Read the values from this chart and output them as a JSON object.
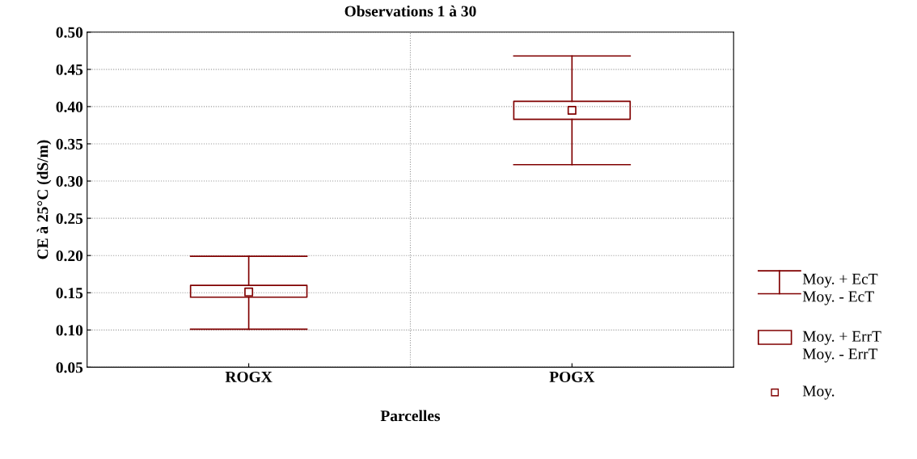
{
  "chart_data": {
    "type": "box",
    "title": "Observations 1 à 30",
    "xlabel": "Parcelles",
    "ylabel": "CE à 25°C (dS/m)",
    "categories": [
      "ROGX",
      "POGX"
    ],
    "boxes": [
      {
        "low": 0.101,
        "q1": 0.144,
        "q3": 0.16,
        "high": 0.199,
        "mean": 0.151
      },
      {
        "low": 0.322,
        "q1": 0.383,
        "q3": 0.407,
        "high": 0.468,
        "mean": 0.395
      }
    ],
    "color": "#800000",
    "ylim": [
      0.05,
      0.5
    ],
    "yticks": [
      {
        "value": 0.05,
        "label": "0.05"
      },
      {
        "value": 0.1,
        "label": "0.10"
      },
      {
        "value": 0.15,
        "label": "0.15"
      },
      {
        "value": 0.2,
        "label": "0.20"
      },
      {
        "value": 0.25,
        "label": "0.25"
      },
      {
        "value": 0.3,
        "label": "0.30"
      },
      {
        "value": 0.35,
        "label": "0.35"
      },
      {
        "value": 0.4,
        "label": "0.40"
      },
      {
        "value": 0.45,
        "label": "0.45"
      },
      {
        "value": 0.5,
        "label": "0.50"
      }
    ],
    "grid": true,
    "marker": "square",
    "annotations": [
      "Moy. + EcT\nMoy. - EcT",
      "Moy. + ErrT\nMoy. - ErrT",
      "Moy."
    ]
  }
}
